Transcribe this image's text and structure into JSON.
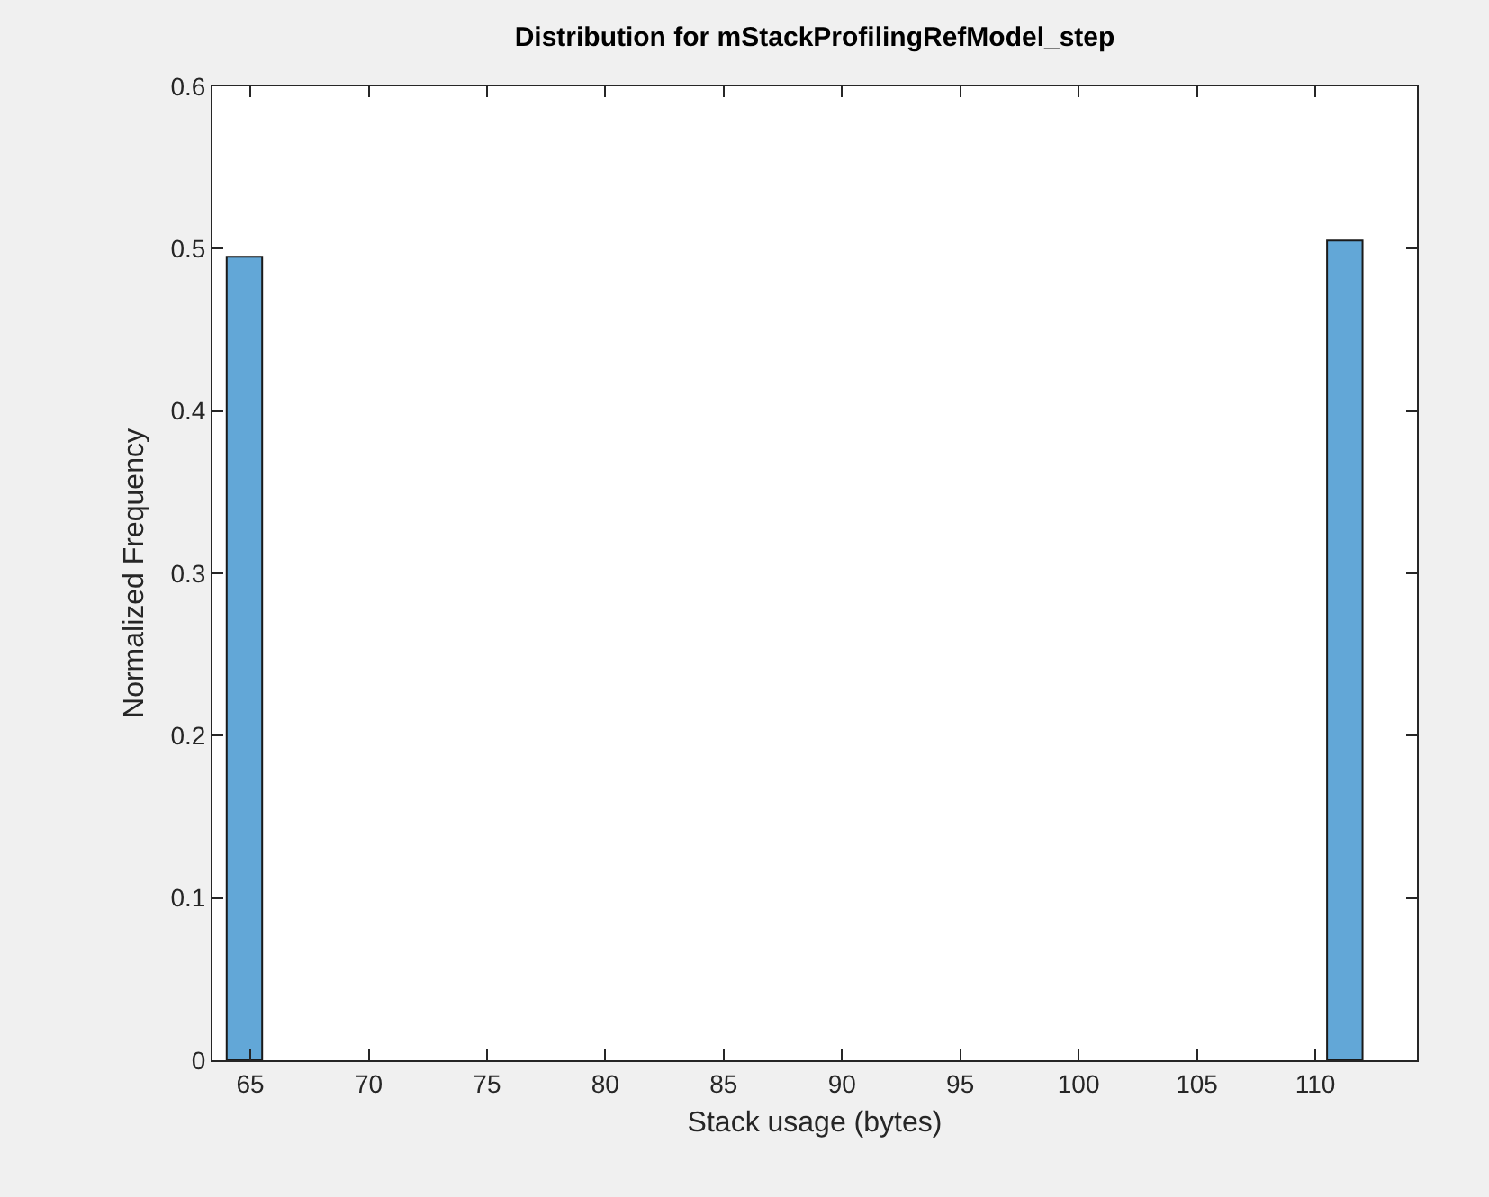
{
  "chart_data": {
    "type": "histogram",
    "title": "Distribution for mStackProfilingRefModel_step",
    "xlabel": "Stack usage (bytes)",
    "ylabel": "Normalized Frequency",
    "bins": [
      64,
      65.5,
      67,
      68.5,
      70,
      71.5,
      73,
      74.5,
      76,
      77.5,
      79,
      80.5,
      82,
      83.5,
      85,
      86.5,
      88,
      89.5,
      91,
      92.5,
      94,
      95.5,
      97,
      98.5,
      100,
      101.5,
      103,
      104.5,
      106,
      107.5,
      109,
      110.5,
      112
    ],
    "values": [
      0.495,
      0,
      0,
      0,
      0,
      0,
      0,
      0,
      0,
      0,
      0,
      0,
      0,
      0,
      0,
      0,
      0,
      0,
      0,
      0,
      0,
      0,
      0,
      0,
      0,
      0,
      0,
      0,
      0,
      0,
      0,
      0.505
    ],
    "color": "#62a7d7",
    "xlim": [
      63.4,
      114.3
    ],
    "xticks": [
      65,
      70,
      75,
      80,
      85,
      90,
      95,
      100,
      105,
      110
    ],
    "ylim": [
      0,
      0.6
    ],
    "yticks": [
      0,
      0.1,
      0.2,
      0.3,
      0.4,
      0.5,
      0.6
    ],
    "grid": false,
    "legend": false
  }
}
